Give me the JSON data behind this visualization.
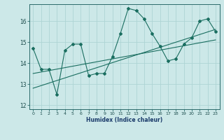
{
  "xlabel": "Humidex (Indice chaleur)",
  "ylabel": "",
  "bg_color": "#cce8e8",
  "grid_color": "#add4d4",
  "line_color": "#1a6e60",
  "xlim": [
    -0.5,
    23.5
  ],
  "ylim": [
    11.8,
    16.8
  ],
  "yticks": [
    12,
    13,
    14,
    15,
    16
  ],
  "xticks": [
    0,
    1,
    2,
    3,
    4,
    5,
    6,
    7,
    8,
    9,
    10,
    11,
    12,
    13,
    14,
    15,
    16,
    17,
    18,
    19,
    20,
    21,
    22,
    23
  ],
  "line1_x": [
    0,
    1,
    2,
    3,
    4,
    5,
    6,
    7,
    8,
    9,
    10,
    11,
    12,
    13,
    14,
    15,
    16,
    17,
    18,
    19,
    20,
    21,
    22,
    23
  ],
  "line1_y": [
    14.7,
    13.7,
    13.7,
    12.5,
    14.6,
    14.9,
    14.9,
    13.4,
    13.5,
    13.5,
    14.3,
    15.4,
    16.6,
    16.5,
    16.1,
    15.4,
    14.8,
    14.1,
    14.2,
    14.9,
    15.2,
    16.0,
    16.1,
    15.5
  ],
  "line2_x": [
    0,
    23
  ],
  "line2_y": [
    12.8,
    15.6
  ],
  "line3_x": [
    0,
    23
  ],
  "line3_y": [
    13.5,
    15.1
  ]
}
